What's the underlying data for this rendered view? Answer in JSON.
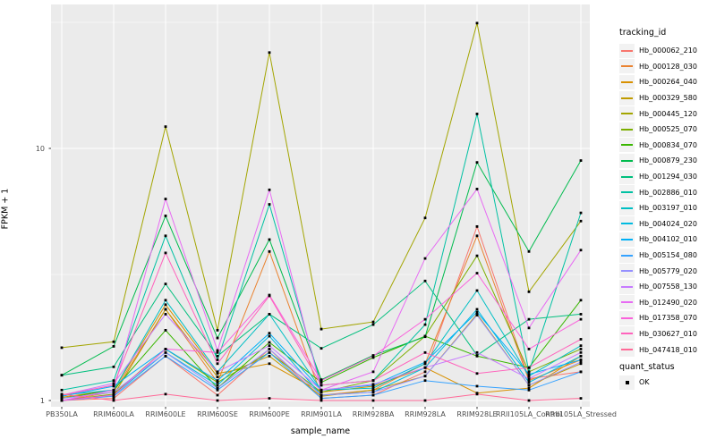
{
  "figure": {
    "background": "#FFFFFF",
    "panel_bg": "#EBEBEB",
    "grid_color": "#FFFFFF",
    "tick_text_color": "#4D4D4D",
    "tick_mark_color": "#333333",
    "marker_color": "#000000"
  },
  "chart_data": {
    "type": "line",
    "title": "",
    "xlabel": "sample_name",
    "ylabel": "FPKM + 1",
    "y_scale": "log10",
    "ylim": [
      0.94,
      37
    ],
    "y_ticks": [
      {
        "label": "10",
        "value": 10
      },
      {
        "label": "1",
        "value": 1
      }
    ],
    "y_minor_gridlines": [
      31.623,
      3.1623
    ],
    "grid": true,
    "legend_position": "right",
    "legend_title": "tracking_id",
    "point_legend_title": "quant_status",
    "point_legend_entries": [
      {
        "label": "OK",
        "shape": "filled-square",
        "color": "#000000"
      }
    ],
    "point_shape": "filled-square",
    "categories": [
      "PB350LA",
      "RRIM600LA",
      "RRIM600LE",
      "RRIM600SE",
      "RRIM600PE",
      "RRIM901LA",
      "RRIM928BA",
      "RRIM928LA",
      "RRIM928LE",
      "RRII105LA_Control",
      "RRII105LA_Stressed"
    ],
    "series": [
      {
        "name": "Hb_000062_210",
        "color": "#F8766D",
        "values": [
          1.0,
          1.02,
          1.5,
          1.05,
          1.6,
          1.02,
          1.05,
          1.3,
          4.9,
          1.22,
          1.3
        ]
      },
      {
        "name": "Hb_000128_030",
        "color": "#EA8331",
        "values": [
          1.0,
          1.08,
          2.3,
          1.18,
          3.9,
          1.05,
          1.1,
          1.4,
          4.5,
          1.2,
          1.45
        ]
      },
      {
        "name": "Hb_000264_040",
        "color": "#D89000",
        "values": [
          1.03,
          1.1,
          2.4,
          1.28,
          1.4,
          1.08,
          1.14,
          1.35,
          1.07,
          1.12,
          1.5
        ]
      },
      {
        "name": "Hb_000329_580",
        "color": "#C09B00",
        "values": [
          1.0,
          1.05,
          2.3,
          1.24,
          1.5,
          1.04,
          1.1,
          1.25,
          2.2,
          1.15,
          1.4
        ]
      },
      {
        "name": "Hb_000445_120",
        "color": "#A3A500",
        "values": [
          1.62,
          1.71,
          12.2,
          1.9,
          24.0,
          1.92,
          2.05,
          5.3,
          31.4,
          2.7,
          5.15
        ]
      },
      {
        "name": "Hb_000525_070",
        "color": "#7CAE00",
        "values": [
          1.0,
          1.06,
          1.6,
          1.18,
          1.55,
          1.08,
          1.2,
          1.8,
          3.75,
          1.3,
          1.6
        ]
      },
      {
        "name": "Hb_000834_070",
        "color": "#39B600",
        "values": [
          1.02,
          1.1,
          1.9,
          1.12,
          1.7,
          1.18,
          1.48,
          1.8,
          1.5,
          1.35,
          2.5
        ]
      },
      {
        "name": "Hb_000879_230",
        "color": "#00BB4E",
        "values": [
          1.26,
          1.64,
          5.4,
          1.77,
          4.35,
          1.21,
          1.51,
          1.79,
          8.8,
          3.9,
          8.95
        ]
      },
      {
        "name": "Hb_001294_030",
        "color": "#00BF7D",
        "values": [
          1.26,
          1.36,
          2.9,
          1.5,
          2.2,
          1.61,
          2.0,
          2.98,
          1.51,
          2.1,
          2.2
        ]
      },
      {
        "name": "Hb_002886_010",
        "color": "#00C1A3",
        "values": [
          1.1,
          1.2,
          4.5,
          1.45,
          6.0,
          1.15,
          1.2,
          2.0,
          13.7,
          1.3,
          5.55
        ]
      },
      {
        "name": "Hb_003197_010",
        "color": "#00BFC4",
        "values": [
          1.05,
          1.1,
          2.5,
          1.3,
          2.2,
          1.1,
          1.12,
          1.4,
          2.73,
          1.25,
          1.65
        ]
      },
      {
        "name": "Hb_004024_020",
        "color": "#00BAE0",
        "values": [
          1.0,
          1.05,
          1.55,
          1.15,
          1.8,
          1.05,
          1.08,
          1.35,
          2.3,
          1.18,
          1.5
        ]
      },
      {
        "name": "Hb_004102_010",
        "color": "#00B0F6",
        "values": [
          1.04,
          1.14,
          1.6,
          1.2,
          1.85,
          1.1,
          1.15,
          1.42,
          2.24,
          1.27,
          1.45
        ]
      },
      {
        "name": "Hb_005154_080",
        "color": "#35A2FF",
        "values": [
          1.0,
          1.04,
          1.5,
          1.1,
          1.55,
          1.02,
          1.05,
          1.2,
          1.14,
          1.1,
          1.3
        ]
      },
      {
        "name": "Hb_005779_020",
        "color": "#9590FF",
        "values": [
          1.02,
          1.08,
          1.55,
          1.12,
          1.6,
          1.05,
          1.08,
          1.25,
          2.18,
          1.15,
          1.42
        ]
      },
      {
        "name": "Hb_007558_130",
        "color": "#C77CFF",
        "values": [
          1.05,
          1.17,
          2.2,
          1.3,
          1.65,
          1.1,
          1.16,
          1.35,
          1.55,
          1.22,
          1.55
        ]
      },
      {
        "name": "Hb_012490_020",
        "color": "#E76BF3",
        "values": [
          1.0,
          1.1,
          6.3,
          1.58,
          6.85,
          1.1,
          1.3,
          3.66,
          6.9,
          1.94,
          3.95
        ]
      },
      {
        "name": "Hb_017358_070",
        "color": "#FA62DB",
        "values": [
          1.0,
          1.05,
          1.6,
          1.55,
          2.62,
          1.2,
          1.5,
          2.1,
          3.2,
          1.6,
          2.1
        ]
      },
      {
        "name": "Hb_030627_010",
        "color": "#FF62BC",
        "values": [
          1.05,
          1.15,
          3.85,
          1.4,
          2.6,
          1.15,
          1.2,
          1.55,
          1.28,
          1.35,
          1.75
        ]
      },
      {
        "name": "Hb_047418_010",
        "color": "#FF6A98",
        "values": [
          1.06,
          1.0,
          1.06,
          1.0,
          1.02,
          1.0,
          1.0,
          1.0,
          1.06,
          1.0,
          1.02
        ]
      }
    ]
  }
}
